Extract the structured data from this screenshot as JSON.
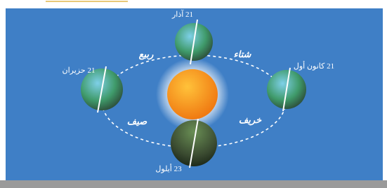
{
  "dates": {
    "top": "21 آذار",
    "left": "21 حزيران",
    "right": "21 كانون أول",
    "bottom": "23 أيلول"
  },
  "seasons": {
    "top_left": "ربيع",
    "top_right": "شتاء",
    "bottom_left": "صيف",
    "bottom_right": "خريف"
  }
}
